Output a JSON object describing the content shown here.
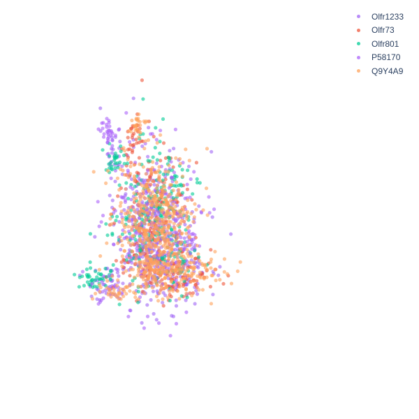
{
  "chart_data": {
    "type": "scatter",
    "title": "",
    "xlabel": "",
    "ylabel": "",
    "axes_visible": false,
    "grid": false,
    "legend_position": "top-right",
    "xlim": [
      0,
      100
    ],
    "ylim": [
      0,
      100
    ],
    "series": [
      {
        "name": "Olfr1233",
        "color": "#a066f5",
        "clusters": [
          {
            "cx": 46,
            "cy": 55,
            "sx": 9,
            "sy": 13,
            "n": 280
          },
          {
            "cx": 52,
            "cy": 70,
            "sx": 12,
            "sy": 5,
            "n": 110
          },
          {
            "cx": 24,
            "cy": 74,
            "sx": 4,
            "sy": 3,
            "n": 35
          },
          {
            "cx": 28,
            "cy": 27,
            "sx": 2.5,
            "sy": 5,
            "n": 30
          },
          {
            "cx": 61,
            "cy": 62,
            "sx": 2,
            "sy": 2,
            "n": 12
          }
        ]
      },
      {
        "name": "Olfr73",
        "color": "#ef553b",
        "clusters": [
          {
            "cx": 45,
            "cy": 53,
            "sx": 8,
            "sy": 12,
            "n": 200
          },
          {
            "cx": 54,
            "cy": 71,
            "sx": 10,
            "sy": 4,
            "n": 80
          },
          {
            "cx": 36,
            "cy": 24,
            "sx": 2,
            "sy": 4,
            "n": 30
          },
          {
            "cx": 57,
            "cy": 74,
            "sx": 3,
            "sy": 3,
            "n": 15
          }
        ]
      },
      {
        "name": "Olfr801",
        "color": "#00cc96",
        "clusters": [
          {
            "cx": 45,
            "cy": 52,
            "sx": 9,
            "sy": 13,
            "n": 220
          },
          {
            "cx": 20,
            "cy": 72,
            "sx": 4,
            "sy": 2,
            "n": 40
          },
          {
            "cx": 29,
            "cy": 32,
            "sx": 2,
            "sy": 2,
            "n": 25
          },
          {
            "cx": 58,
            "cy": 66,
            "sx": 2,
            "sy": 3,
            "n": 15
          },
          {
            "cx": 54,
            "cy": 42,
            "sx": 2,
            "sy": 3,
            "n": 15
          }
        ]
      },
      {
        "name": "P58170",
        "color": "#ab63fa",
        "clusters": [
          {
            "cx": 45,
            "cy": 54,
            "sx": 9,
            "sy": 13,
            "n": 230
          },
          {
            "cx": 26,
            "cy": 22,
            "sx": 2,
            "sy": 3,
            "n": 25
          },
          {
            "cx": 26,
            "cy": 76,
            "sx": 3,
            "sy": 2,
            "n": 20
          },
          {
            "cx": 62,
            "cy": 60,
            "sx": 1.5,
            "sy": 1.5,
            "n": 10
          }
        ]
      },
      {
        "name": "Q9Y4A9",
        "color": "#ffa15a",
        "clusters": [
          {
            "cx": 46,
            "cy": 54,
            "sx": 8,
            "sy": 12,
            "n": 450
          },
          {
            "cx": 53,
            "cy": 70,
            "sx": 11,
            "sy": 4,
            "n": 180
          },
          {
            "cx": 30,
            "cy": 77,
            "sx": 4,
            "sy": 1.5,
            "n": 30
          },
          {
            "cx": 38,
            "cy": 20,
            "sx": 2,
            "sy": 2,
            "n": 25
          }
        ]
      }
    ]
  }
}
